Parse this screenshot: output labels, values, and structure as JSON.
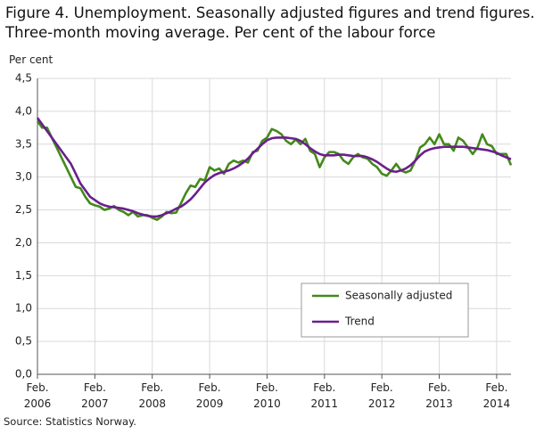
{
  "chart_data": {
    "type": "line",
    "title": "Figure 4. Unemployment. Seasonally adjusted figures and trend figures. Three-month moving average. Per cent of the labour force",
    "y_label": "Per cent",
    "source": "Source: Statistics Norway.",
    "x": [
      "2006-02",
      "2006-03",
      "2006-04",
      "2006-05",
      "2006-06",
      "2006-07",
      "2006-08",
      "2006-09",
      "2006-10",
      "2006-11",
      "2006-12",
      "2007-01",
      "2007-02",
      "2007-03",
      "2007-04",
      "2007-05",
      "2007-06",
      "2007-07",
      "2007-08",
      "2007-09",
      "2007-10",
      "2007-11",
      "2007-12",
      "2008-01",
      "2008-02",
      "2008-03",
      "2008-04",
      "2008-05",
      "2008-06",
      "2008-07",
      "2008-08",
      "2008-09",
      "2008-10",
      "2008-11",
      "2008-12",
      "2009-01",
      "2009-02",
      "2009-03",
      "2009-04",
      "2009-05",
      "2009-06",
      "2009-07",
      "2009-08",
      "2009-09",
      "2009-10",
      "2009-11",
      "2009-12",
      "2010-01",
      "2010-02",
      "2010-03",
      "2010-04",
      "2010-05",
      "2010-06",
      "2010-07",
      "2010-08",
      "2010-09",
      "2010-10",
      "2010-11",
      "2010-12",
      "2011-01",
      "2011-02",
      "2011-03",
      "2011-04",
      "2011-05",
      "2011-06",
      "2011-07",
      "2011-08",
      "2011-09",
      "2011-10",
      "2011-11",
      "2011-12",
      "2012-01",
      "2012-02",
      "2012-03",
      "2012-04",
      "2012-05",
      "2012-06",
      "2012-07",
      "2012-08",
      "2012-09",
      "2012-10",
      "2012-11",
      "2012-12",
      "2013-01",
      "2013-02",
      "2013-03",
      "2013-04",
      "2013-05",
      "2013-06",
      "2013-07",
      "2013-08",
      "2013-09",
      "2013-10",
      "2013-11",
      "2013-12",
      "2014-01",
      "2014-02",
      "2014-03",
      "2014-04",
      "2014-05"
    ],
    "series": [
      {
        "name": "Seasonally adjusted",
        "color": "#43891a",
        "values": [
          3.85,
          3.75,
          3.75,
          3.6,
          3.45,
          3.3,
          3.15,
          3.0,
          2.85,
          2.83,
          2.7,
          2.6,
          2.57,
          2.55,
          2.5,
          2.52,
          2.56,
          2.5,
          2.47,
          2.42,
          2.47,
          2.4,
          2.42,
          2.42,
          2.38,
          2.35,
          2.4,
          2.47,
          2.45,
          2.46,
          2.6,
          2.75,
          2.87,
          2.85,
          2.97,
          2.95,
          3.15,
          3.1,
          3.13,
          3.05,
          3.2,
          3.25,
          3.22,
          3.25,
          3.22,
          3.38,
          3.4,
          3.55,
          3.6,
          3.73,
          3.7,
          3.65,
          3.55,
          3.5,
          3.57,
          3.5,
          3.58,
          3.4,
          3.35,
          3.15,
          3.3,
          3.38,
          3.38,
          3.35,
          3.25,
          3.2,
          3.3,
          3.35,
          3.3,
          3.28,
          3.2,
          3.15,
          3.05,
          3.02,
          3.1,
          3.2,
          3.1,
          3.07,
          3.1,
          3.25,
          3.45,
          3.5,
          3.6,
          3.5,
          3.65,
          3.5,
          3.5,
          3.4,
          3.6,
          3.55,
          3.45,
          3.35,
          3.45,
          3.65,
          3.5,
          3.47,
          3.35,
          3.35,
          3.35,
          3.18
        ]
      },
      {
        "name": "Trend",
        "color": "#6a1f8c",
        "values": [
          3.9,
          3.8,
          3.7,
          3.6,
          3.5,
          3.4,
          3.3,
          3.2,
          3.05,
          2.9,
          2.8,
          2.7,
          2.65,
          2.6,
          2.57,
          2.55,
          2.54,
          2.53,
          2.52,
          2.5,
          2.48,
          2.45,
          2.43,
          2.41,
          2.4,
          2.4,
          2.42,
          2.45,
          2.48,
          2.52,
          2.55,
          2.6,
          2.66,
          2.74,
          2.83,
          2.92,
          2.98,
          3.03,
          3.06,
          3.08,
          3.1,
          3.13,
          3.17,
          3.22,
          3.28,
          3.36,
          3.43,
          3.5,
          3.56,
          3.59,
          3.6,
          3.6,
          3.6,
          3.59,
          3.58,
          3.55,
          3.5,
          3.44,
          3.39,
          3.35,
          3.33,
          3.33,
          3.33,
          3.34,
          3.34,
          3.33,
          3.32,
          3.32,
          3.32,
          3.3,
          3.27,
          3.23,
          3.18,
          3.13,
          3.09,
          3.08,
          3.1,
          3.13,
          3.18,
          3.25,
          3.33,
          3.39,
          3.42,
          3.44,
          3.45,
          3.46,
          3.46,
          3.46,
          3.46,
          3.46,
          3.45,
          3.44,
          3.43,
          3.42,
          3.41,
          3.39,
          3.37,
          3.33,
          3.3,
          3.27
        ]
      }
    ],
    "xlim": [
      "2006-02",
      "2014-05"
    ],
    "xticks": [
      {
        "value": "2006-02",
        "label": "Feb. 2006"
      },
      {
        "value": "2007-02",
        "label": "Feb. 2007"
      },
      {
        "value": "2008-02",
        "label": "Feb. 2008"
      },
      {
        "value": "2009-02",
        "label": "Feb. 2009"
      },
      {
        "value": "2010-02",
        "label": "Feb. 2010"
      },
      {
        "value": "2011-02",
        "label": "Feb. 2011"
      },
      {
        "value": "2012-02",
        "label": "Feb. 2012"
      },
      {
        "value": "2013-02",
        "label": "Feb. 2013"
      },
      {
        "value": "2014-02",
        "label": "Feb. 2014"
      }
    ],
    "ylim": [
      0,
      4.5
    ],
    "yticks": [
      {
        "value": 0,
        "label": "0,0"
      },
      {
        "value": 0.5,
        "label": "0,5"
      },
      {
        "value": 1,
        "label": "1,0"
      },
      {
        "value": 1.5,
        "label": "1,5"
      },
      {
        "value": 2,
        "label": "2,0"
      },
      {
        "value": 2.5,
        "label": "2,5"
      },
      {
        "value": 3,
        "label": "3,0"
      },
      {
        "value": 3.5,
        "label": "3,5"
      },
      {
        "value": 4,
        "label": "4,0"
      },
      {
        "value": 4.5,
        "label": "4,5"
      }
    ],
    "grid": true
  }
}
